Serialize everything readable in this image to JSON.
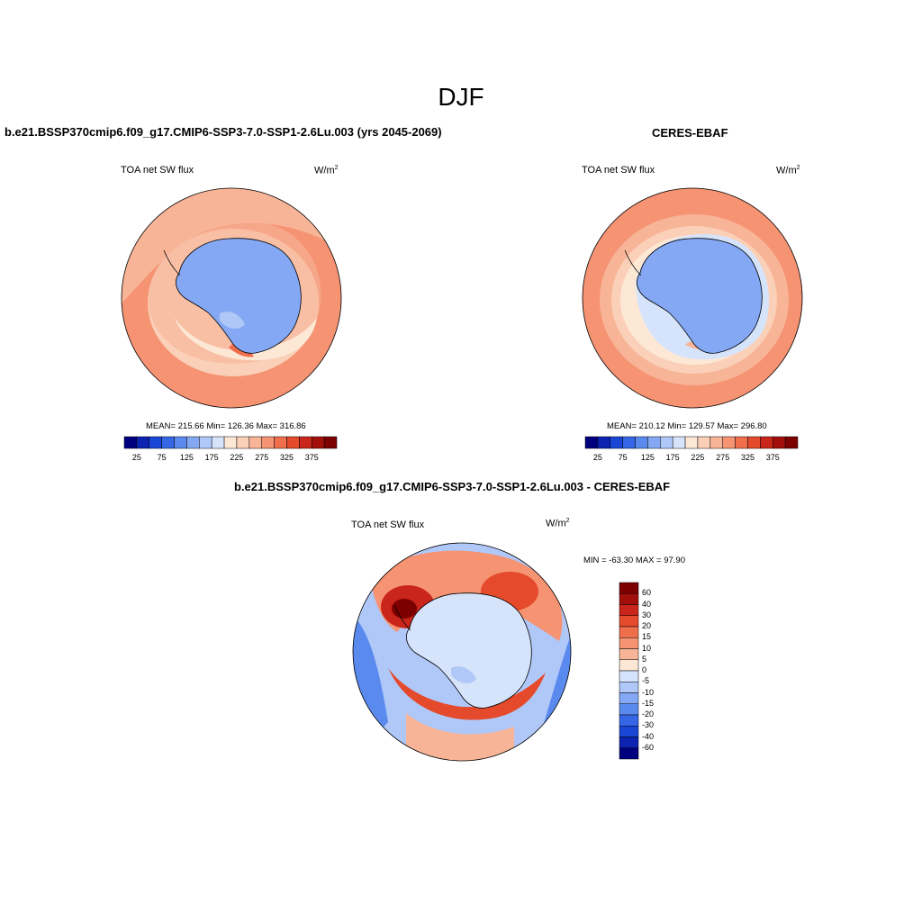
{
  "figure": {
    "title": "DJF"
  },
  "panels": {
    "model": {
      "title": "b.e21.BSSP370cmip6.f09_g17.CMIP6-SSP3-7.0-SSP1-2.6Lu.003 (yrs 2045-2069)",
      "variable": "TOA net SW flux",
      "units_base": "W/m",
      "units_sup": "2",
      "stats": "MEAN= 215.66  Min= 126.36  Max= 316.86"
    },
    "obs": {
      "title": "CERES-EBAF",
      "variable": "TOA net SW flux",
      "units_base": "W/m",
      "units_sup": "2",
      "stats": "MEAN= 210.12  Min= 129.57  Max= 296.80"
    },
    "diff": {
      "title": "b.e21.BSSP370cmip6.f09_g17.CMIP6-SSP3-7.0-SSP1-2.6Lu.003 - CERES-EBAF",
      "variable": "TOA net SW flux",
      "units_base": "W/m",
      "units_sup": "2",
      "stats": "MIN = -63.30 MAX =  97.90"
    }
  },
  "colorbars": {
    "abs": {
      "colors": [
        "#00007f",
        "#0b23b0",
        "#1a46d6",
        "#3466e6",
        "#5b8aef",
        "#84a8f3",
        "#b0c8f8",
        "#d6e4fb",
        "#fde8d6",
        "#fbd0b8",
        "#f8b497",
        "#f59373",
        "#ef6e4c",
        "#e44a2b",
        "#c9251a",
        "#a3100c",
        "#7c0000"
      ],
      "ticks": [
        "25",
        "75",
        "125",
        "175",
        "225",
        "275",
        "325",
        "375"
      ]
    },
    "diff": {
      "colors": [
        "#7c0000",
        "#a3100c",
        "#c9251a",
        "#e44a2b",
        "#ef6e4c",
        "#f59373",
        "#f8b497",
        "#fde8d6",
        "#d6e4fb",
        "#b0c8f8",
        "#84a8f3",
        "#5b8aef",
        "#3466e6",
        "#1a46d6",
        "#0b23b0",
        "#00007f"
      ],
      "ticks": [
        "60",
        "40",
        "30",
        "20",
        "15",
        "10",
        "5",
        "0",
        "-5",
        "-10",
        "-15",
        "-20",
        "-30",
        "-40",
        "-60"
      ]
    }
  },
  "chart_data": [
    {
      "type": "heatmap",
      "title": "b.e21.BSSP370cmip6.f09_g17.CMIP6-SSP3-7.0-SSP1-2.6Lu.003 (yrs 2045-2069)",
      "subtitle": "TOA net SW flux",
      "units": "W/m^2",
      "projection": "south-polar stereographic",
      "mean": 215.66,
      "min": 126.36,
      "max": 316.86,
      "colorbar_ticks": [
        25,
        75,
        125,
        175,
        225,
        275,
        325,
        375
      ]
    },
    {
      "type": "heatmap",
      "title": "CERES-EBAF",
      "subtitle": "TOA net SW flux",
      "units": "W/m^2",
      "projection": "south-polar stereographic",
      "mean": 210.12,
      "min": 129.57,
      "max": 296.8,
      "colorbar_ticks": [
        25,
        75,
        125,
        175,
        225,
        275,
        325,
        375
      ]
    },
    {
      "type": "heatmap",
      "title": "b.e21.BSSP370cmip6.f09_g17.CMIP6-SSP3-7.0-SSP1-2.6Lu.003 - CERES-EBAF",
      "subtitle": "TOA net SW flux",
      "units": "W/m^2",
      "projection": "south-polar stereographic",
      "min": -63.3,
      "max": 97.9,
      "colorbar_ticks": [
        60,
        40,
        30,
        20,
        15,
        10,
        5,
        0,
        -5,
        -10,
        -15,
        -20,
        -30,
        -40,
        -60
      ]
    }
  ]
}
